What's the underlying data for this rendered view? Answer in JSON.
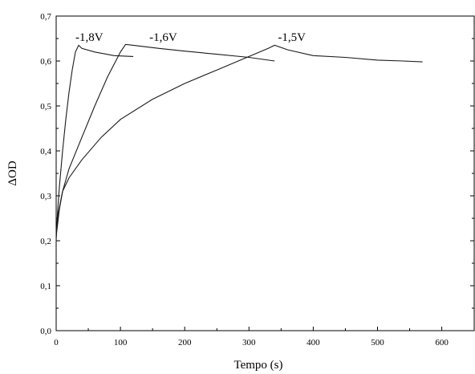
{
  "chart_data": {
    "type": "line",
    "xlabel": "Tempo (s)",
    "ylabel": "ΔOD",
    "xlim": [
      0,
      640
    ],
    "ylim": [
      0,
      0.7
    ],
    "x_ticks": [
      0,
      100,
      200,
      300,
      400,
      500,
      600
    ],
    "x_tick_labels": [
      "0",
      "100",
      "200",
      "300",
      "400",
      "500",
      "600"
    ],
    "y_ticks": [
      0.0,
      0.1,
      0.2,
      0.3,
      0.4,
      0.5,
      0.6,
      0.7
    ],
    "y_tick_labels": [
      "0,0",
      "0,1",
      "0,2",
      "0,3",
      "0,4",
      "0,5",
      "0,6",
      "0,7"
    ],
    "grid": false,
    "legend": "none",
    "series": [
      {
        "name": "-1,8V",
        "points": [
          [
            0,
            0.2
          ],
          [
            2,
            0.26
          ],
          [
            5,
            0.32
          ],
          [
            10,
            0.4
          ],
          [
            15,
            0.47
          ],
          [
            20,
            0.53
          ],
          [
            25,
            0.58
          ],
          [
            30,
            0.62
          ],
          [
            35,
            0.635
          ],
          [
            40,
            0.628
          ],
          [
            60,
            0.62
          ],
          [
            90,
            0.612
          ],
          [
            120,
            0.61
          ]
        ]
      },
      {
        "name": "-1,6V",
        "points": [
          [
            0,
            0.21
          ],
          [
            5,
            0.27
          ],
          [
            10,
            0.31
          ],
          [
            20,
            0.36
          ],
          [
            40,
            0.43
          ],
          [
            60,
            0.5
          ],
          [
            80,
            0.565
          ],
          [
            100,
            0.62
          ],
          [
            108,
            0.637
          ],
          [
            120,
            0.635
          ],
          [
            160,
            0.628
          ],
          [
            200,
            0.622
          ],
          [
            250,
            0.615
          ],
          [
            300,
            0.608
          ],
          [
            340,
            0.6
          ]
        ]
      },
      {
        "name": "-1,5V",
        "points": [
          [
            0,
            0.22
          ],
          [
            3,
            0.26
          ],
          [
            10,
            0.31
          ],
          [
            20,
            0.34
          ],
          [
            40,
            0.38
          ],
          [
            70,
            0.43
          ],
          [
            100,
            0.47
          ],
          [
            150,
            0.515
          ],
          [
            200,
            0.55
          ],
          [
            250,
            0.58
          ],
          [
            300,
            0.61
          ],
          [
            330,
            0.628
          ],
          [
            340,
            0.635
          ],
          [
            360,
            0.625
          ],
          [
            400,
            0.612
          ],
          [
            450,
            0.608
          ],
          [
            500,
            0.602
          ],
          [
            540,
            0.6
          ],
          [
            570,
            0.598
          ]
        ]
      }
    ],
    "annotations": [
      {
        "text": "-1,8V",
        "x": 30,
        "y": 0.645
      },
      {
        "text": "-1,6V",
        "x": 145,
        "y": 0.645
      },
      {
        "text": "-1,5V",
        "x": 345,
        "y": 0.645
      }
    ]
  }
}
